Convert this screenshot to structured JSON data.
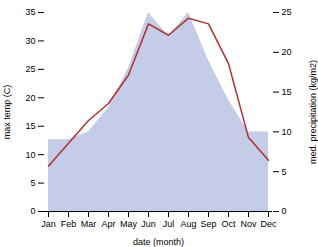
{
  "chart_data": {
    "type": "line",
    "categories": [
      "Jan",
      "Feb",
      "Mar",
      "Apr",
      "May",
      "Jun",
      "Jul",
      "Aug",
      "Sep",
      "Oct",
      "Nov",
      "Dec"
    ],
    "series": [
      {
        "type": "area",
        "axis": "y2",
        "color": "#c5cce8",
        "values": [
          9,
          9,
          10,
          13,
          18,
          25,
          22,
          25,
          19,
          14,
          10,
          10
        ]
      },
      {
        "type": "line",
        "color": "#b03030",
        "values": [
          8,
          12,
          16,
          19,
          24,
          33,
          31,
          34,
          33,
          26,
          13,
          9
        ]
      }
    ],
    "xlabel": "date (month)",
    "ylabel": "max temp (C)",
    "y2label": "med. precipitation (kg/m2)",
    "ylim": [
      0,
      35
    ],
    "yticks": [
      0,
      5,
      10,
      15,
      20,
      25,
      30,
      35
    ],
    "y2lim": [
      0,
      25
    ],
    "y2ticks": [
      0,
      5,
      10,
      15,
      20,
      25
    ],
    "grid": false
  }
}
